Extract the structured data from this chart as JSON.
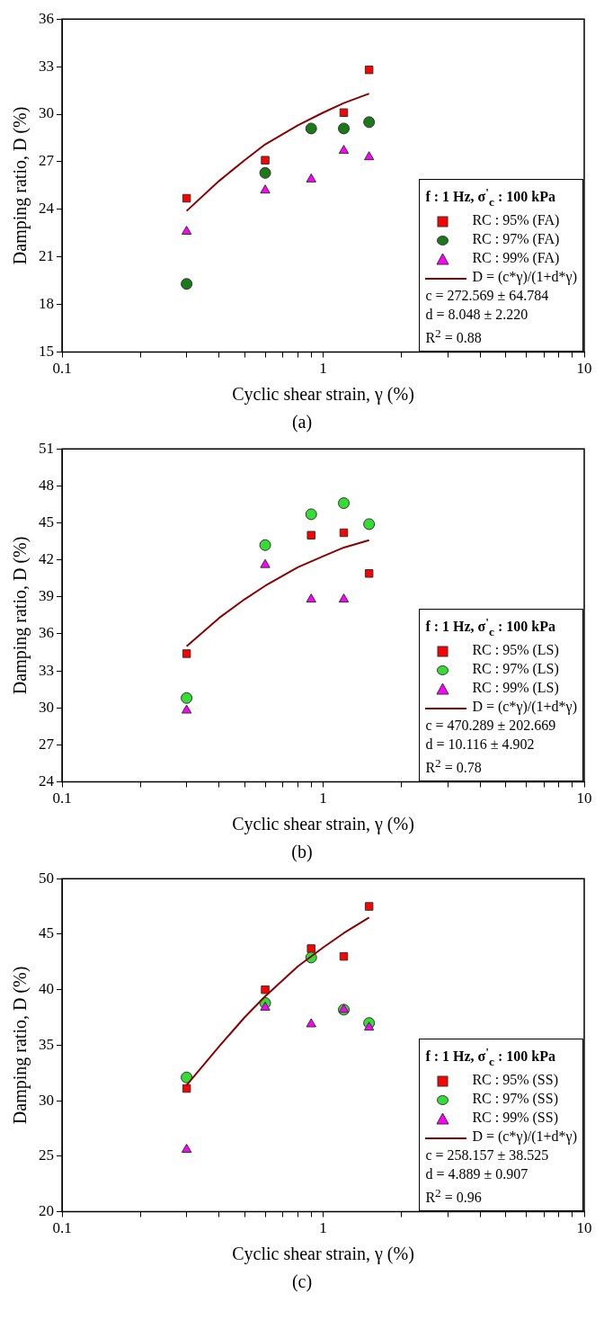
{
  "chart_data": [
    {
      "type": "scatter",
      "title": "(a)",
      "xlabel": "Cyclic shear strain, γ (%)",
      "ylabel": "Damping ratio, D (%)",
      "legend_title": "f : 1 Hz, σ$^{'}$$_{c}$ : 100 kPa",
      "legend": "bottom right",
      "grid": false,
      "log": "x",
      "xlim": [
        0.1,
        10
      ],
      "xticks": [
        0.1,
        {
          "value": 0.2,
          "label": null
        },
        {
          "value": 0.3,
          "label": null
        },
        {
          "value": 0.4,
          "label": null
        },
        {
          "value": 0.5,
          "label": null
        },
        {
          "value": 0.6,
          "label": null
        },
        {
          "value": 0.7,
          "label": null
        },
        {
          "value": 0.8,
          "label": null
        },
        {
          "value": 0.9,
          "label": null
        },
        1,
        {
          "value": 2,
          "label": null
        },
        {
          "value": 3,
          "label": null
        },
        {
          "value": 4,
          "label": null
        },
        {
          "value": 5,
          "label": null
        },
        {
          "value": 6,
          "label": null
        },
        {
          "value": 7,
          "label": null
        },
        {
          "value": 8,
          "label": null
        },
        {
          "value": 9,
          "label": null
        },
        10
      ],
      "ylim": [
        15,
        36
      ],
      "yticks": [
        15,
        18,
        21,
        24,
        27,
        30,
        33,
        36
      ],
      "x": [
        0.3,
        0.6,
        0.9,
        1.2,
        1.5
      ],
      "series": [
        {
          "name": "RC : 95% (FA)",
          "color": "#ff0000",
          "marker": "square",
          "values": [
            24.7,
            27.1,
            null,
            30.1,
            32.8
          ]
        },
        {
          "name": "RC : 97% (FA)",
          "color": "#1a7a1a",
          "marker": "circle",
          "values": [
            19.3,
            26.3,
            29.1,
            29.1,
            29.5
          ]
        },
        {
          "name": "RC : 99% (FA)",
          "color": "#ff00ff",
          "marker": "triangle",
          "values": [
            22.6,
            25.2,
            25.9,
            27.7,
            27.3
          ]
        },
        {
          "name": "D = (c*γ)/(1+d*γ)",
          "type": "line",
          "color": "#8b0000",
          "marker": "none",
          "line_style": "solid",
          "x": [
            0.3,
            0.4,
            0.5,
            0.6,
            0.8,
            1.0,
            1.2,
            1.5
          ],
          "values": [
            23.9,
            25.8,
            27.1,
            28.1,
            29.3,
            30.1,
            30.7,
            31.3
          ]
        }
      ],
      "annotations": [
        "c = 272.569 ± 64.784",
        "d = 8.048 ± 2.220",
        "R$^{2}$ = 0.88"
      ]
    },
    {
      "type": "scatter",
      "title": "(b)",
      "xlabel": "Cyclic shear strain, γ (%)",
      "ylabel": "Damping ratio, D (%)",
      "legend_title": "f : 1 Hz, σ$^{'}$$_{c}$ : 100 kPa",
      "legend": "bottom right",
      "grid": false,
      "log": "x",
      "xlim": [
        0.1,
        10
      ],
      "xticks": [
        0.1,
        {
          "value": 0.2,
          "label": null
        },
        {
          "value": 0.3,
          "label": null
        },
        {
          "value": 0.4,
          "label": null
        },
        {
          "value": 0.5,
          "label": null
        },
        {
          "value": 0.6,
          "label": null
        },
        {
          "value": 0.7,
          "label": null
        },
        {
          "value": 0.8,
          "label": null
        },
        {
          "value": 0.9,
          "label": null
        },
        1,
        {
          "value": 2,
          "label": null
        },
        {
          "value": 3,
          "label": null
        },
        {
          "value": 4,
          "label": null
        },
        {
          "value": 5,
          "label": null
        },
        {
          "value": 6,
          "label": null
        },
        {
          "value": 7,
          "label": null
        },
        {
          "value": 8,
          "label": null
        },
        {
          "value": 9,
          "label": null
        },
        10
      ],
      "ylim": [
        24,
        51
      ],
      "yticks": [
        24,
        27,
        30,
        33,
        36,
        39,
        42,
        45,
        48,
        51
      ],
      "x": [
        0.3,
        0.6,
        0.9,
        1.2,
        1.5
      ],
      "series": [
        {
          "name": "RC : 95% (LS)",
          "color": "#ff0000",
          "marker": "square",
          "values": [
            34.4,
            null,
            44.0,
            44.2,
            40.9
          ]
        },
        {
          "name": "RC : 97% (LS)",
          "color": "#33dd33",
          "marker": "circle",
          "values": [
            30.8,
            43.2,
            45.7,
            46.6,
            44.9
          ]
        },
        {
          "name": "RC : 99% (LS)",
          "color": "#ff00ff",
          "marker": "triangle",
          "values": [
            29.8,
            41.6,
            38.8,
            38.8,
            null
          ]
        },
        {
          "name": "D = (c*γ)/(1+d*γ)",
          "type": "line",
          "color": "#8b0000",
          "marker": "none",
          "line_style": "solid",
          "x": [
            0.3,
            0.4,
            0.5,
            0.6,
            0.8,
            1.0,
            1.2,
            1.5
          ],
          "values": [
            35.0,
            37.3,
            38.8,
            39.9,
            41.4,
            42.3,
            43.0,
            43.6
          ]
        }
      ],
      "annotations": [
        "c = 470.289 ± 202.669",
        "d = 10.116 ± 4.902",
        "R$^{2}$ = 0.78"
      ]
    },
    {
      "type": "scatter",
      "title": "(c)",
      "xlabel": "Cyclic shear strain, γ (%)",
      "ylabel": "Damping ratio, D (%)",
      "legend_title": "f : 1 Hz, σ$^{'}$$_{c}$ : 100 kPa",
      "legend": "bottom right",
      "grid": false,
      "log": "x",
      "xlim": [
        0.1,
        10
      ],
      "xticks": [
        0.1,
        {
          "value": 0.2,
          "label": null
        },
        {
          "value": 0.3,
          "label": null
        },
        {
          "value": 0.4,
          "label": null
        },
        {
          "value": 0.5,
          "label": null
        },
        {
          "value": 0.6,
          "label": null
        },
        {
          "value": 0.7,
          "label": null
        },
        {
          "value": 0.8,
          "label": null
        },
        {
          "value": 0.9,
          "label": null
        },
        1,
        {
          "value": 2,
          "label": null
        },
        {
          "value": 3,
          "label": null
        },
        {
          "value": 4,
          "label": null
        },
        {
          "value": 5,
          "label": null
        },
        {
          "value": 6,
          "label": null
        },
        {
          "value": 7,
          "label": null
        },
        {
          "value": 8,
          "label": null
        },
        {
          "value": 9,
          "label": null
        },
        10
      ],
      "ylim": [
        20,
        50
      ],
      "yticks": [
        20,
        25,
        30,
        35,
        40,
        45,
        50
      ],
      "x": [
        0.3,
        0.6,
        0.9,
        1.2,
        1.5
      ],
      "series": [
        {
          "name": "RC : 95% (SS)",
          "color": "#ff0000",
          "marker": "square",
          "values": [
            31.1,
            40.0,
            43.7,
            43.0,
            47.5
          ]
        },
        {
          "name": "RC : 97% (SS)",
          "color": "#33dd33",
          "marker": "circle",
          "values": [
            32.1,
            38.8,
            42.9,
            38.2,
            37.0
          ]
        },
        {
          "name": "RC : 99% (SS)",
          "color": "#ff00ff",
          "marker": "triangle",
          "values": [
            25.6,
            38.4,
            36.9,
            38.2,
            36.6
          ]
        },
        {
          "name": "D = (c*γ)/(1+d*γ)",
          "type": "line",
          "color": "#8b0000",
          "marker": "none",
          "line_style": "solid",
          "x": [
            0.3,
            0.4,
            0.5,
            0.6,
            0.8,
            1.0,
            1.2,
            1.5
          ],
          "values": [
            31.4,
            34.9,
            37.5,
            39.4,
            42.1,
            43.8,
            45.1,
            46.5
          ]
        }
      ],
      "annotations": [
        "c = 258.157 ± 38.525",
        "d = 4.889 ± 0.907",
        "R$^{2}$ = 0.96"
      ]
    }
  ]
}
